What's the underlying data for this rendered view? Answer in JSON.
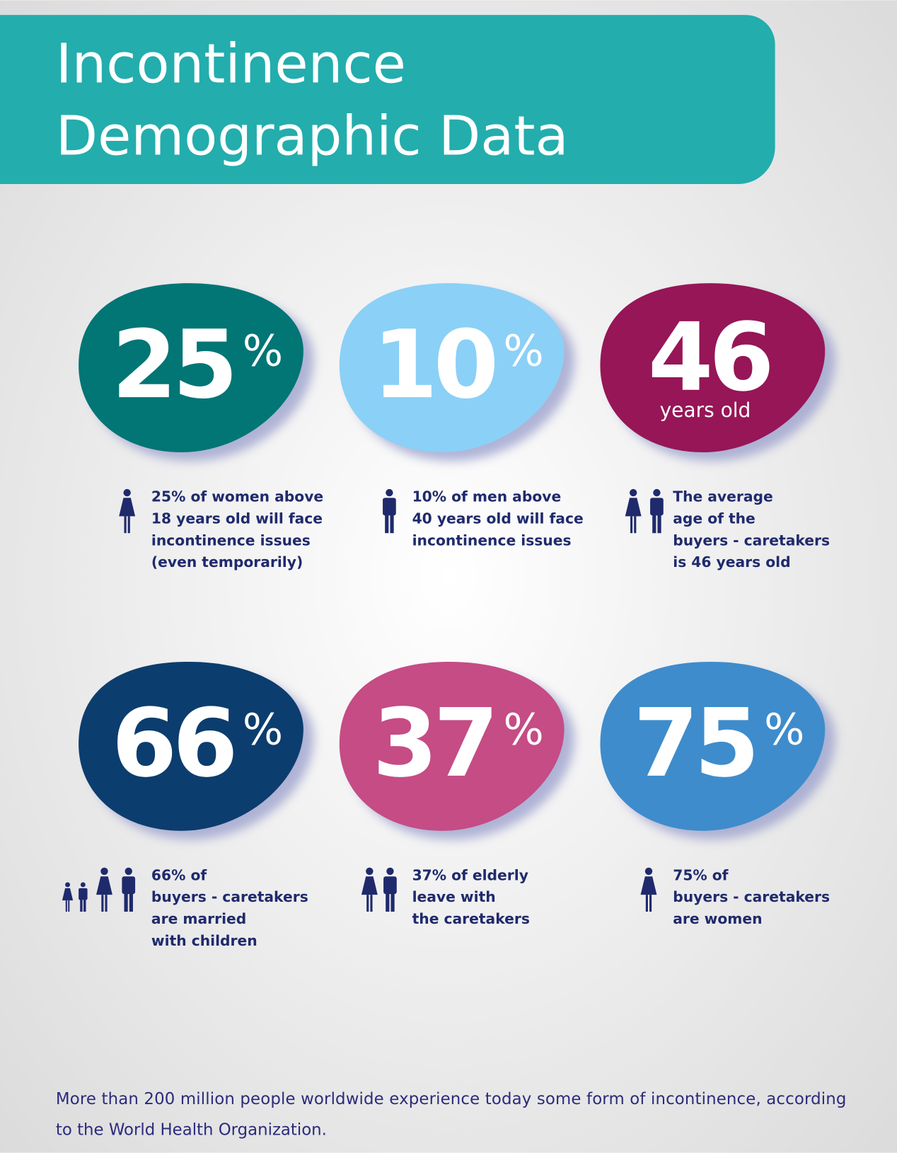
{
  "header": {
    "title_lines": [
      "Incontinence",
      "Demographic Data"
    ]
  },
  "stats": [
    {
      "number": "25",
      "suffix": "%",
      "color": "#027575",
      "description": [
        "25% of women above",
        "18 years old will face",
        "incontinence issues",
        "(even temporarily)"
      ]
    },
    {
      "number": "10",
      "suffix": "%",
      "color": "#8BD0F6",
      "description": [
        "10% of men above",
        "40 years old will face",
        "incontinence issues"
      ]
    },
    {
      "number": "46",
      "subtitle": "years old",
      "color": "#961657",
      "description": [
        "The average",
        "age of the",
        "buyers - caretakers",
        "is 46 years old"
      ]
    },
    {
      "number": "66",
      "suffix": "%",
      "color": "#0B3D6E",
      "description": [
        "66% of",
        "buyers - caretakers",
        "are married",
        "with children"
      ]
    },
    {
      "number": "37",
      "suffix": "%",
      "color": "#C54C85",
      "description": [
        "37% of elderly",
        "leave with",
        "the caretakers"
      ]
    },
    {
      "number": "75",
      "suffix": "%",
      "color": "#3E8CCC",
      "description": [
        "75% of",
        "buyers - caretakers",
        "are women"
      ]
    }
  ],
  "footer": {
    "lines": [
      "More than 200 million people worldwide experience today some form of incontinence, according",
      "to the World Health Organization."
    ]
  }
}
